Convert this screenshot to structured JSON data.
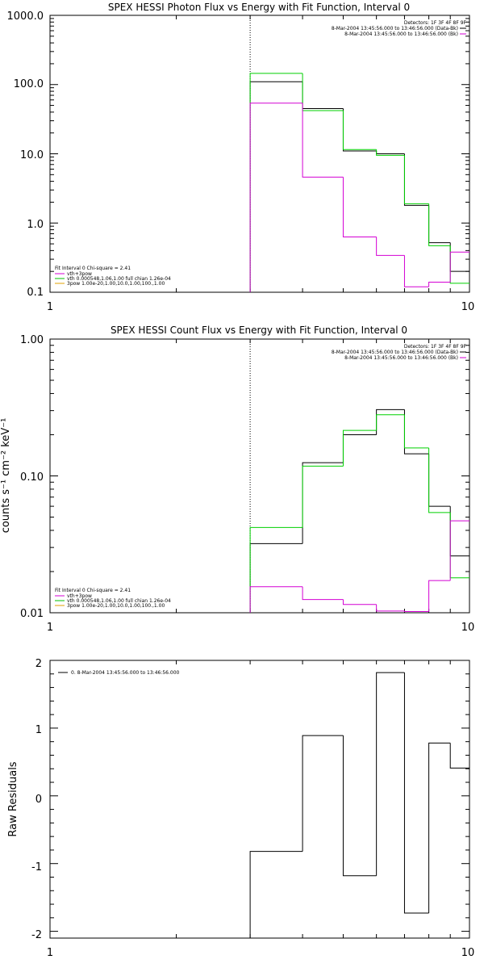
{
  "chart_data": [
    {
      "type": "line",
      "title": "SPEX HESSI Photon Flux vs Energy with Fit Function, Interval 0",
      "xlabel": "",
      "ylabel": "",
      "xscale": "log",
      "yscale": "log",
      "xlim": [
        1,
        10
      ],
      "ylim": [
        0.1,
        1000
      ],
      "x_ticks": [
        "1",
        "10"
      ],
      "y_ticks": [
        "1000.0",
        "100.0",
        "10.0",
        "1.0",
        "0.1"
      ],
      "legend_header": [
        "Detectors: 1F 3F 4F 8F 9F",
        "8-Mar-2004 13:45:56.000 to 13:46:56.000 (Data-Bk)",
        "8-Mar-2004 13:45:56.000 to 13:46:56.000 (Bk)"
      ],
      "fit_info": "Fit Interval  0    Chi-square = 2.41",
      "components": [
        "vth+3pow",
        "vth 0.000548,1.06,1.00  full chian 1.26e-04",
        "3pow 1.00e-20,1.00,10.0,1.00,100.,1.00"
      ],
      "component_colors": [
        "#d400d4",
        "#00c000",
        "#e0a000"
      ],
      "marker_x": 3,
      "bin_edges": [
        3,
        4,
        5,
        6,
        7,
        8,
        9,
        10
      ],
      "series": [
        {
          "color": "#000000",
          "values": [
            110,
            45,
            11,
            10,
            1.8,
            0.52,
            0.2
          ]
        },
        {
          "color": "#00d000",
          "values": [
            145,
            42,
            11.5,
            9.5,
            1.9,
            0.47,
            0.135
          ]
        },
        {
          "color": "#d400d4",
          "values": [
            54,
            4.6,
            0.63,
            0.34,
            0.12,
            0.14,
            0.38
          ]
        }
      ]
    },
    {
      "type": "line",
      "title": "SPEX HESSI Count Flux vs Energy with Fit Function, Interval 0",
      "xlabel": "",
      "ylabel": "counts s⁻¹ cm⁻² keV⁻¹",
      "xscale": "log",
      "yscale": "log",
      "xlim": [
        1,
        10
      ],
      "ylim": [
        0.01,
        1
      ],
      "x_ticks": [
        "1",
        "10"
      ],
      "y_ticks": [
        "1.00",
        "0.10",
        "0.01"
      ],
      "legend_header": [
        "Detectors: 1F 3F 4F 8F 9F",
        "8-Mar-2004 13:45:56.000 to 13:46:56.000 (Data-Bk)",
        "8-Mar-2004 13:45:56.000 to 13:46:56.000 (Bk)"
      ],
      "fit_info": "Fit Interval  0    Chi-square = 2.41",
      "components": [
        "vth+3pow",
        "vth 0.000548,1.06,1.00  full chian 1.26e-04",
        "3pow 1.00e-20,1.00,10.0,1.00,100.,1.00"
      ],
      "component_colors": [
        "#d400d4",
        "#00c000",
        "#e0a000"
      ],
      "marker_x": 3,
      "bin_edges": [
        3,
        4,
        5,
        6,
        7,
        8,
        9,
        10
      ],
      "series": [
        {
          "color": "#000000",
          "values": [
            0.032,
            0.125,
            0.2,
            0.305,
            0.145,
            0.06,
            0.026
          ]
        },
        {
          "color": "#00d000",
          "values": [
            0.042,
            0.118,
            0.215,
            0.28,
            0.16,
            0.054,
            0.018
          ]
        },
        {
          "color": "#d400d4",
          "values": [
            0.0155,
            0.0125,
            0.0115,
            0.0103,
            0.0102,
            0.0172,
            0.047
          ]
        }
      ]
    },
    {
      "type": "line",
      "title": "",
      "xlabel": "",
      "ylabel": "Raw Residuals",
      "xscale": "log",
      "yscale": "linear",
      "xlim": [
        1,
        10
      ],
      "ylim": [
        -2.1,
        2
      ],
      "x_ticks": [
        "1",
        "10"
      ],
      "y_ticks": [
        "2",
        "1",
        "0",
        "-1",
        "-2"
      ],
      "legend_entry": "0.  8-Mar-2004 13:45:56.000 to 13:46:56.000",
      "bin_edges": [
        3,
        4,
        5,
        6,
        7,
        8,
        9,
        10
      ],
      "series": [
        {
          "color": "#000000",
          "values": [
            -0.82,
            0.89,
            -1.18,
            1.82,
            -1.73,
            0.78,
            0.41
          ]
        }
      ]
    }
  ]
}
